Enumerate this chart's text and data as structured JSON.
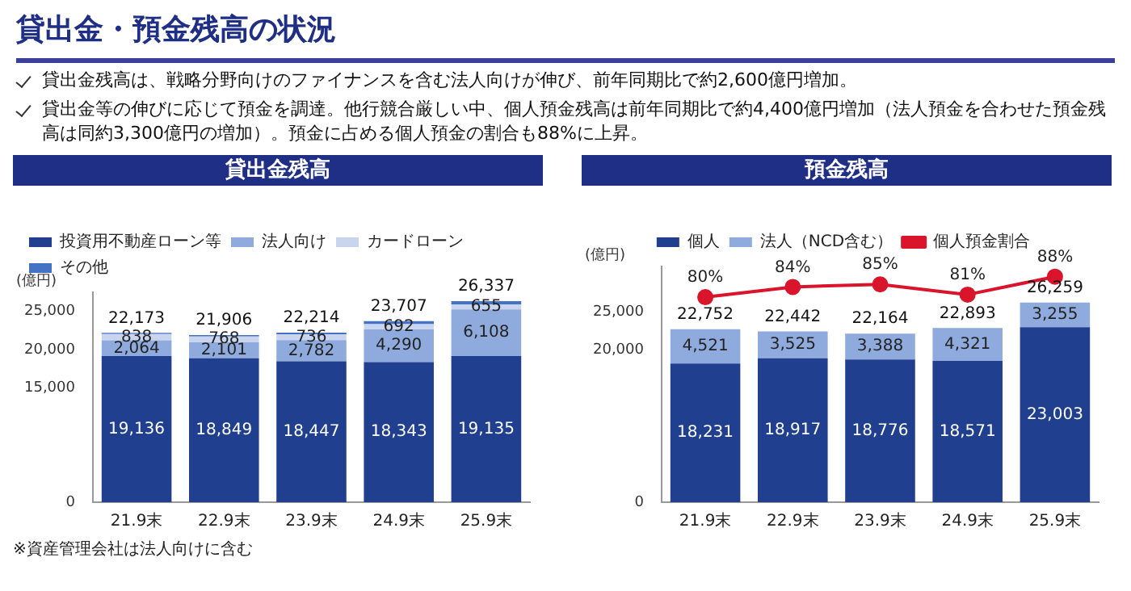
{
  "chart_data": [
    {
      "type": "other",
      "title": "貸出金・預金残高の状況",
      "annotations": [
        "貸出金残高は、戦略分野向けのファイナンスを含む法人向けが伸び、前年同期比で約2,600億円増加。",
        "貸出金等の伸びに応じて預金を調達。他行競合厳しい中、個人預金残高は前年同期比で約4,400億円増加（法人預金を合わせた預金残高は同約3,300億円の増加）。預金に占める個人預金の割合も88%に上昇。"
      ]
    },
    {
      "type": "bar",
      "title": "貸出金残高",
      "ylabel": "(億円)",
      "stacked": true,
      "categories": [
        "21.9末",
        "22.9末",
        "23.9末",
        "24.9末",
        "25.9末"
      ],
      "series": [
        {
          "name": "投資用不動産ローン等",
          "color": "#203f8f",
          "values": [
            19136,
            18849,
            18447,
            18343,
            19135
          ],
          "value_labels": [
            "19,136",
            "18,849",
            "18,447",
            "18,343",
            "19,135"
          ]
        },
        {
          "name": "法人向け",
          "color": "#8faadc",
          "values": [
            2064,
            2101,
            2782,
            4290,
            6108
          ],
          "value_labels": [
            "2,064",
            "2,101",
            "2,782",
            "4,290",
            "6,108"
          ]
        },
        {
          "name": "カードローン",
          "color": "#c9d5ef",
          "values": [
            838,
            768,
            736,
            692,
            655
          ],
          "value_labels": [
            "838",
            "768",
            "736",
            "692",
            "655"
          ]
        },
        {
          "name": "その他",
          "color": "#4472c4",
          "values": [
            135,
            188,
            249,
            382,
            439
          ]
        }
      ],
      "totals": [
        "22,173",
        "21,906",
        "22,214",
        "23,707",
        "26,337"
      ],
      "ylim": [
        0,
        27500
      ],
      "yticks": [
        0,
        {
          "value": 15000,
          "label": "15,000"
        },
        {
          "value": 20000,
          "label": "20,000"
        },
        {
          "value": 25000,
          "label": "25,000"
        }
      ],
      "legend": "top left",
      "annotations": [
        "※資産管理会社は法人向けに含む"
      ]
    },
    {
      "type": "bar",
      "title": "預金残高",
      "ylabel": "(億円)",
      "stacked": true,
      "categories": [
        "21.9末",
        "22.9末",
        "23.9末",
        "24.9末",
        "25.9末"
      ],
      "series": [
        {
          "name": "個人",
          "color": "#203f8f",
          "values": [
            18231,
            18917,
            18776,
            18571,
            23003
          ],
          "value_labels": [
            "18,231",
            "18,917",
            "18,776",
            "18,571",
            "23,003"
          ]
        },
        {
          "name": "法人（NCD含む）",
          "color": "#8faadc",
          "values": [
            4521,
            3525,
            3388,
            4321,
            3255
          ],
          "value_labels": [
            "4,521",
            "3,525",
            "3,388",
            "4,321",
            "3,255"
          ]
        },
        {
          "name": "個人預金割合",
          "type": "line",
          "axis": "y2",
          "color": "#d9142b",
          "marker": "circle",
          "values": [
            80,
            84,
            85,
            81,
            88
          ],
          "value_labels": [
            "80%",
            "84%",
            "85%",
            "81%",
            "88%"
          ]
        }
      ],
      "totals": [
        "22,752",
        "22,442",
        "22,164",
        "22,893",
        "26,259"
      ],
      "ylim": [
        0,
        31000
      ],
      "yticks": [
        0,
        {
          "value": 20000,
          "label": "20,000"
        },
        {
          "value": 25000,
          "label": "25,000"
        }
      ],
      "y2lim": [
        0,
        92
      ],
      "legend": "top"
    }
  ]
}
